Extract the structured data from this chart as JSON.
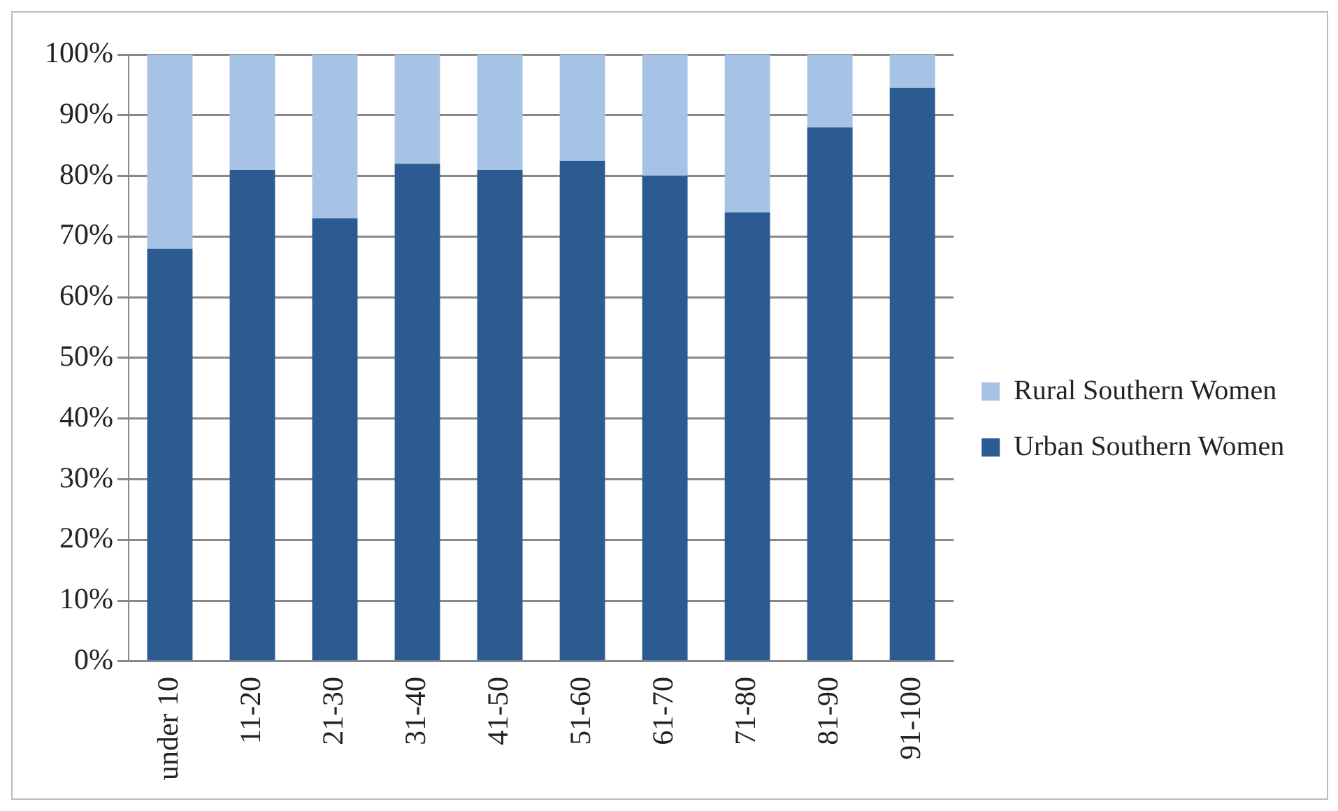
{
  "chart_data": {
    "type": "bar",
    "stacked": true,
    "categories": [
      "under 10",
      "11-20",
      "21-30",
      "31-40",
      "41-50",
      "51-60",
      "61-70",
      "71-80",
      "81-90",
      "91-100"
    ],
    "series": [
      {
        "name": "Urban Southern Women",
        "color": "#2b5b91",
        "values": [
          68,
          81,
          73,
          82,
          81,
          82.5,
          80,
          74,
          88,
          94.5
        ]
      },
      {
        "name": "Rural Southern Women",
        "color": "#a6c3e5",
        "values": [
          32,
          19,
          27,
          18,
          19,
          17.5,
          20,
          26,
          12,
          5.5
        ]
      }
    ],
    "ylim": [
      0,
      100
    ],
    "yticks": [
      {
        "value": 0,
        "label": "0%"
      },
      {
        "value": 10,
        "label": "10%"
      },
      {
        "value": 20,
        "label": "20%"
      },
      {
        "value": 30,
        "label": "30%"
      },
      {
        "value": 40,
        "label": "40%"
      },
      {
        "value": 50,
        "label": "50%"
      },
      {
        "value": 60,
        "label": "60%"
      },
      {
        "value": 70,
        "label": "70%"
      },
      {
        "value": 80,
        "label": "80%"
      },
      {
        "value": 90,
        "label": "90%"
      },
      {
        "value": 100,
        "label": "100%"
      }
    ],
    "grid": "y",
    "legend": "right"
  }
}
